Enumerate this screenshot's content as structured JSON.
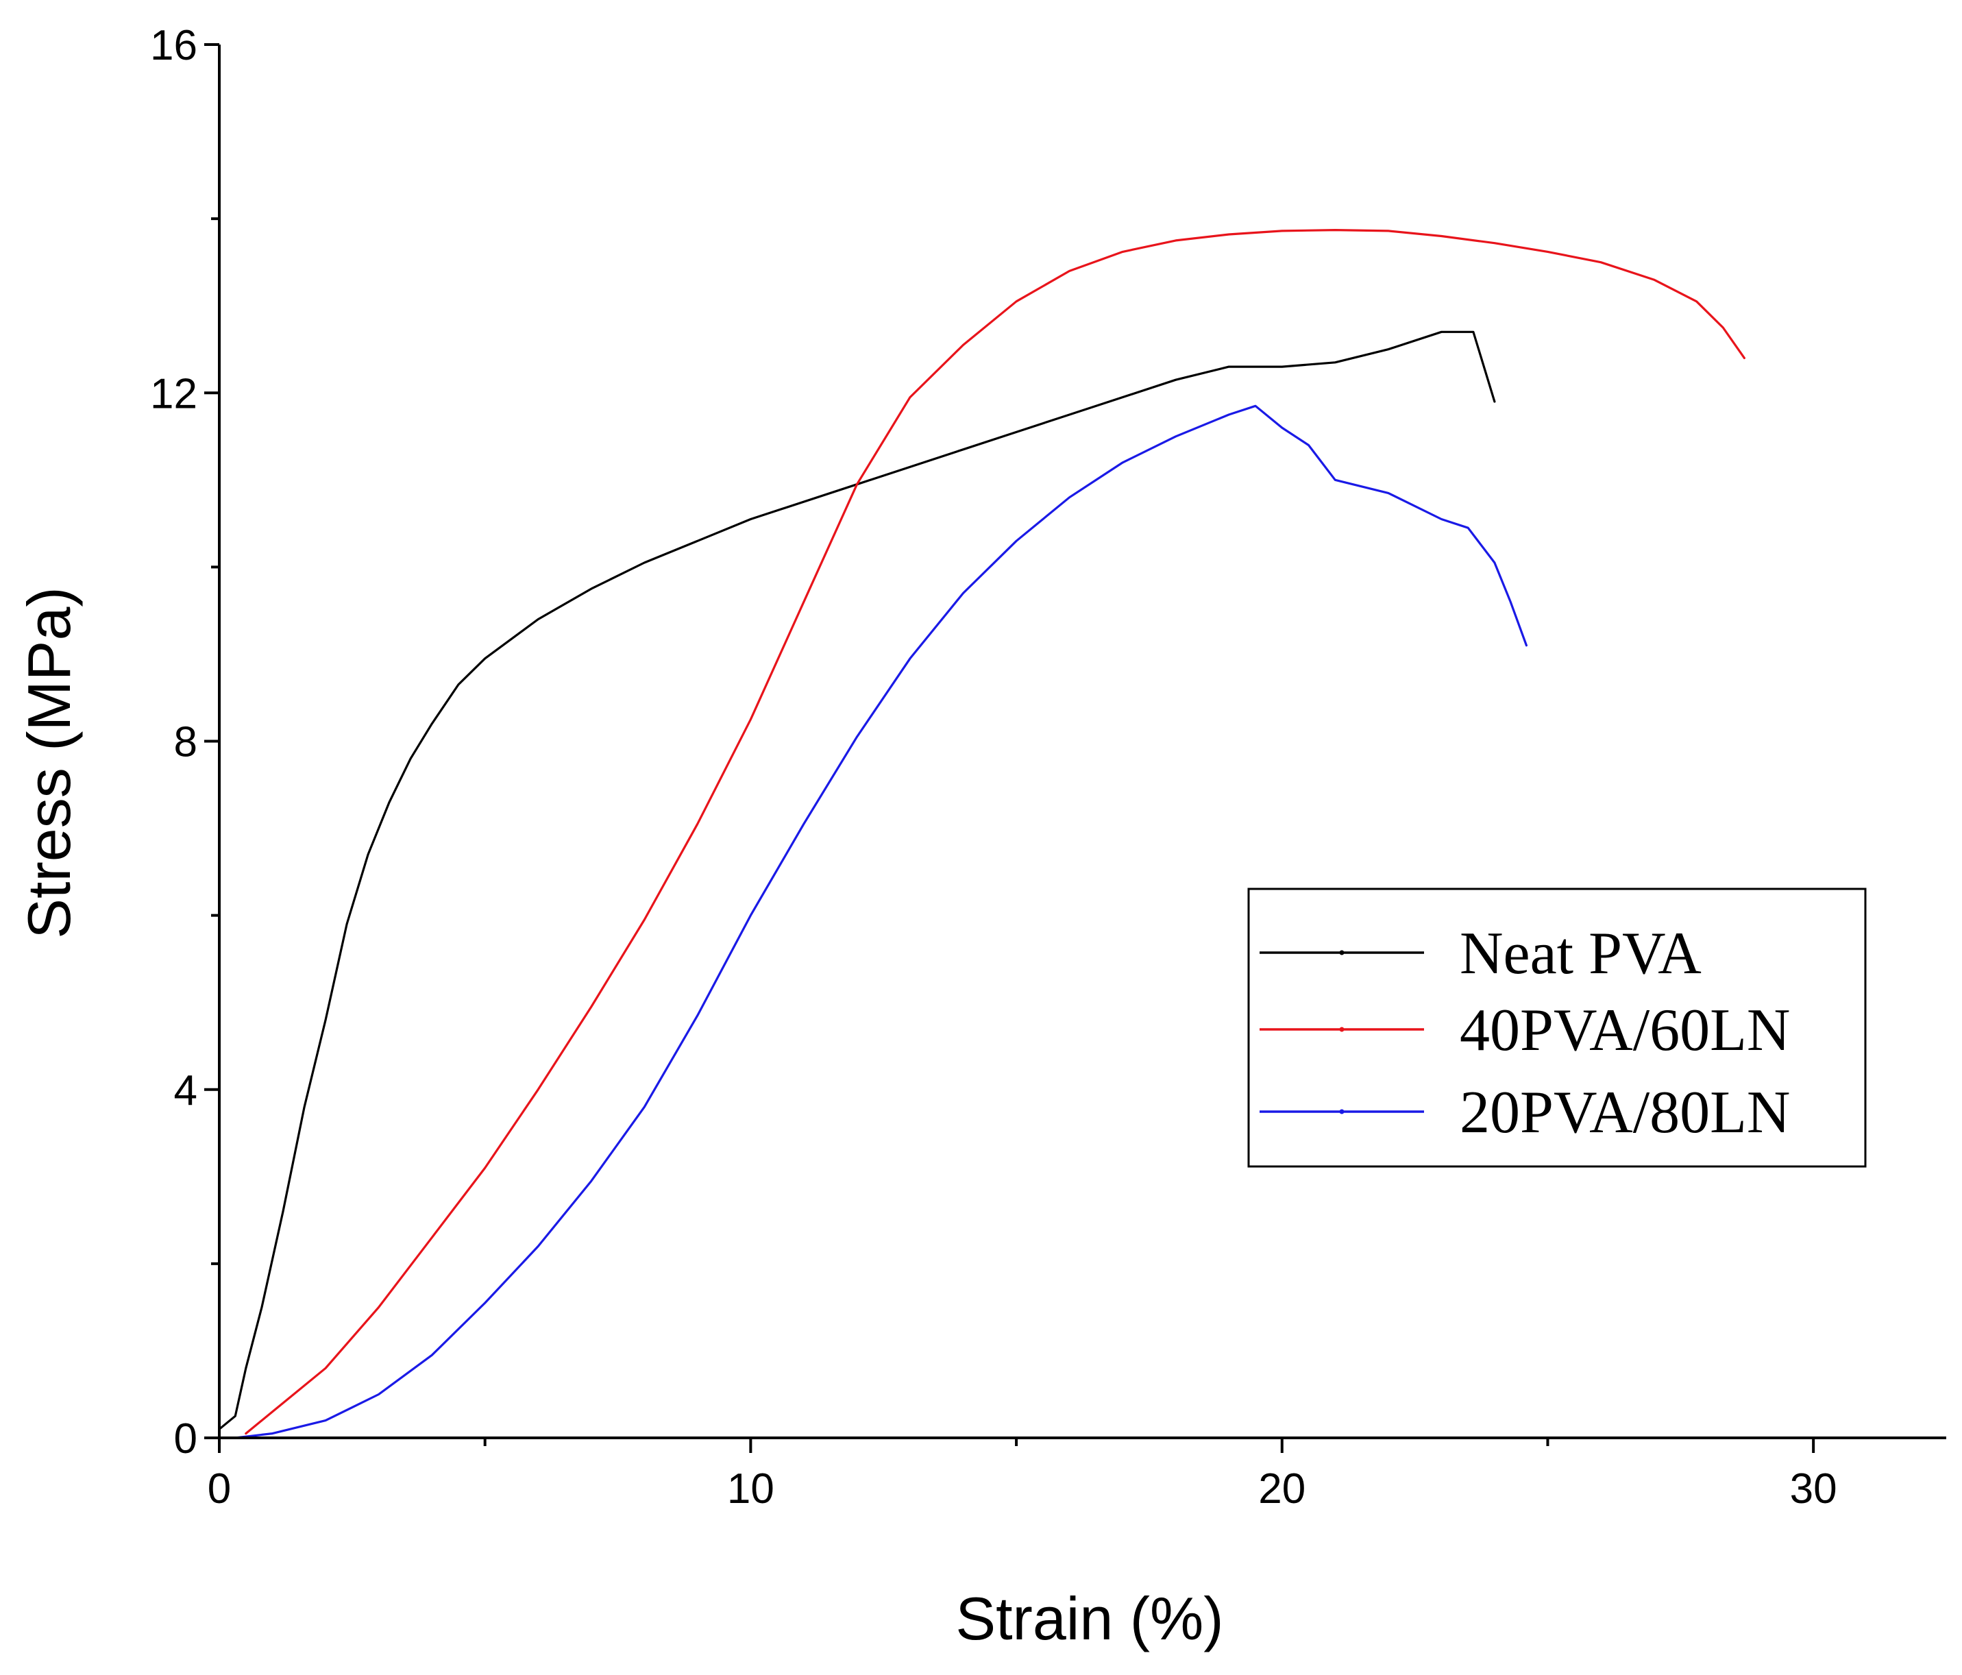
{
  "chart_data": {
    "type": "line",
    "title": "",
    "xlabel": "Strain (%)",
    "ylabel": "Stress (MPa)",
    "xlim": [
      0,
      32.5
    ],
    "ylim": [
      0,
      16
    ],
    "xticks": [
      0,
      10,
      20,
      30
    ],
    "xticks_minor": [
      5,
      15,
      25
    ],
    "yticks": [
      0,
      4,
      8,
      12,
      16
    ],
    "yticks_minor": [
      2,
      6,
      10,
      14
    ],
    "grid": false,
    "legend_position": "center-right",
    "series": [
      {
        "name": "Neat PVA",
        "color": "#000000",
        "points": [
          [
            0,
            0.1
          ],
          [
            0.3,
            0.25
          ],
          [
            0.5,
            0.8
          ],
          [
            0.8,
            1.5
          ],
          [
            1.2,
            2.6
          ],
          [
            1.6,
            3.8
          ],
          [
            2.0,
            4.8
          ],
          [
            2.4,
            5.9
          ],
          [
            2.8,
            6.7
          ],
          [
            3.2,
            7.3
          ],
          [
            3.6,
            7.8
          ],
          [
            4.0,
            8.2
          ],
          [
            4.5,
            8.65
          ],
          [
            5.0,
            8.95
          ],
          [
            6.0,
            9.4
          ],
          [
            7.0,
            9.75
          ],
          [
            8.0,
            10.05
          ],
          [
            9.0,
            10.3
          ],
          [
            10.0,
            10.55
          ],
          [
            12.0,
            10.95
          ],
          [
            14.0,
            11.35
          ],
          [
            16.0,
            11.75
          ],
          [
            18.0,
            12.15
          ],
          [
            19.0,
            12.3
          ],
          [
            20.0,
            12.3
          ],
          [
            21.0,
            12.35
          ],
          [
            22.0,
            12.5
          ],
          [
            23.0,
            12.7
          ],
          [
            23.6,
            12.7
          ],
          [
            23.8,
            12.3
          ],
          [
            24.0,
            11.9
          ]
        ]
      },
      {
        "name": "40PVA/60LN",
        "color": "#e8141b",
        "points": [
          [
            0.5,
            0.05
          ],
          [
            1.0,
            0.3
          ],
          [
            2.0,
            0.8
          ],
          [
            3.0,
            1.5
          ],
          [
            4.0,
            2.3
          ],
          [
            5.0,
            3.1
          ],
          [
            6.0,
            4.0
          ],
          [
            7.0,
            4.95
          ],
          [
            8.0,
            5.95
          ],
          [
            9.0,
            7.05
          ],
          [
            10.0,
            8.25
          ],
          [
            11.0,
            9.6
          ],
          [
            12.0,
            10.95
          ],
          [
            13.0,
            11.95
          ],
          [
            14.0,
            12.55
          ],
          [
            15.0,
            13.05
          ],
          [
            16.0,
            13.4
          ],
          [
            17.0,
            13.62
          ],
          [
            18.0,
            13.75
          ],
          [
            19.0,
            13.82
          ],
          [
            20.0,
            13.86
          ],
          [
            21.0,
            13.87
          ],
          [
            22.0,
            13.86
          ],
          [
            23.0,
            13.8
          ],
          [
            24.0,
            13.72
          ],
          [
            25.0,
            13.62
          ],
          [
            26.0,
            13.5
          ],
          [
            27.0,
            13.3
          ],
          [
            27.8,
            13.05
          ],
          [
            28.3,
            12.75
          ],
          [
            28.7,
            12.4
          ]
        ]
      },
      {
        "name": "20PVA/80LN",
        "color": "#1a1ae6",
        "points": [
          [
            0.3,
            0.0
          ],
          [
            1.0,
            0.05
          ],
          [
            2.0,
            0.2
          ],
          [
            3.0,
            0.5
          ],
          [
            4.0,
            0.95
          ],
          [
            5.0,
            1.55
          ],
          [
            6.0,
            2.2
          ],
          [
            7.0,
            2.95
          ],
          [
            8.0,
            3.8
          ],
          [
            9.0,
            4.85
          ],
          [
            10.0,
            6.0
          ],
          [
            11.0,
            7.05
          ],
          [
            12.0,
            8.05
          ],
          [
            13.0,
            8.95
          ],
          [
            14.0,
            9.7
          ],
          [
            15.0,
            10.3
          ],
          [
            16.0,
            10.8
          ],
          [
            17.0,
            11.2
          ],
          [
            18.0,
            11.5
          ],
          [
            19.0,
            11.75
          ],
          [
            19.5,
            11.85
          ],
          [
            20.0,
            11.6
          ],
          [
            20.5,
            11.4
          ],
          [
            21.0,
            11.0
          ],
          [
            22.0,
            10.85
          ],
          [
            23.0,
            10.55
          ],
          [
            23.5,
            10.45
          ],
          [
            24.0,
            10.05
          ],
          [
            24.3,
            9.6
          ],
          [
            24.6,
            9.1
          ]
        ]
      }
    ]
  }
}
